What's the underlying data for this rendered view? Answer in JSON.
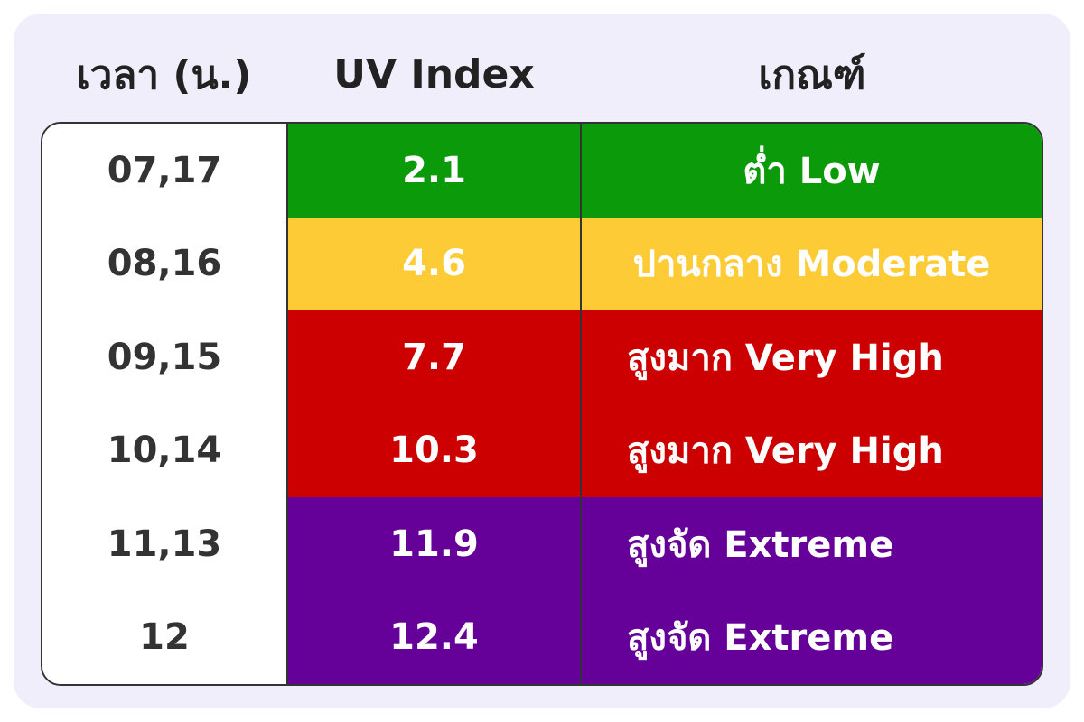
{
  "header": {
    "time": "เวลา (น.)",
    "uv": "UV Index",
    "level": "เกณฑ์"
  },
  "table": {
    "rows": [
      {
        "time": "07,17",
        "uv": "2.1",
        "level": "ต่ำ Low",
        "color": "#0a9a0a"
      },
      {
        "time": "08,16",
        "uv": "4.6",
        "level": "ปานกลาง Moderate",
        "color": "#fccb35"
      },
      {
        "time": "09,15",
        "uv": "7.7",
        "level": "สูงมาก Very High",
        "color": "#cc0000"
      },
      {
        "time": "10,14",
        "uv": "10.3",
        "level": "สูงมาก Very High",
        "color": "#cc0000"
      },
      {
        "time": "11,13",
        "uv": "11.9",
        "level": "สูงจัด Extreme",
        "color": "#650099"
      },
      {
        "time": "12",
        "uv": "12.4",
        "level": "สูงจัด Extreme",
        "color": "#650099"
      }
    ]
  }
}
